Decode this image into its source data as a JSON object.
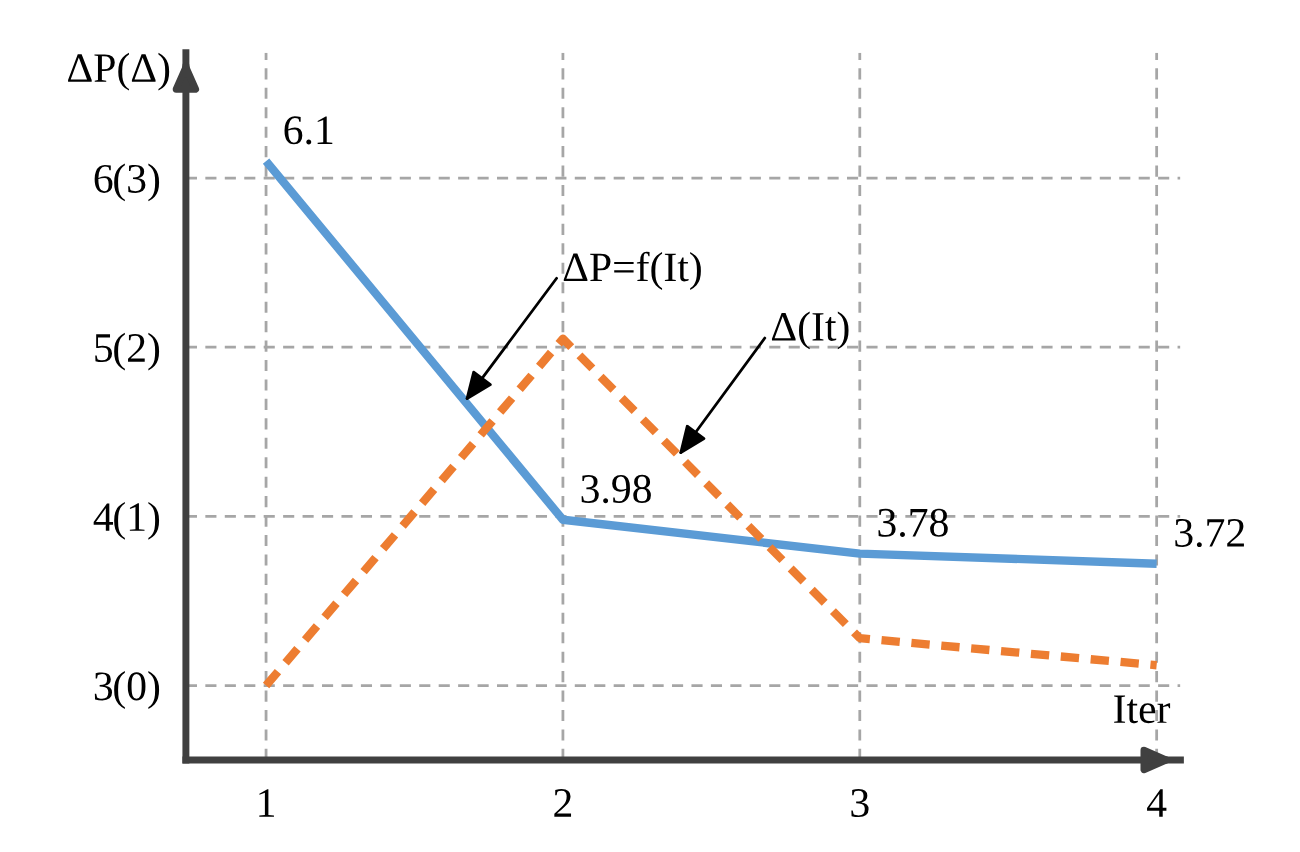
{
  "chart_data": {
    "type": "line",
    "xlabel": "Iter",
    "ylabel": "ΔP(Δ)",
    "x": [
      1,
      2,
      3,
      4
    ],
    "series": [
      {
        "color": "#5b9bd5",
        "values": [
          6.1,
          3.98,
          3.78,
          3.72
        ],
        "value_labels": [
          "6.1",
          "3.98",
          "3.78",
          "3.72"
        ],
        "line_style": "solid"
      },
      {
        "color": "#ed7d31",
        "values": [
          0.0,
          2.05,
          0.28,
          0.12
        ],
        "line_style": "dashed",
        "axis": "y2"
      }
    ],
    "xlim": [
      0.73,
      4.08
    ],
    "ylim": [
      2.56,
      6.74
    ],
    "xticks": [
      1,
      2,
      3,
      4
    ],
    "yticks": [
      3,
      4,
      5,
      6
    ],
    "y2lim": [
      -0.44,
      3.74
    ],
    "y2ticks": [
      {
        "value": 0,
        "label": "(0)"
      },
      {
        "value": 1,
        "label": "(1)"
      },
      {
        "value": 2,
        "label": "(2)"
      },
      {
        "value": 3,
        "label": "(3)"
      }
    ],
    "annotations": [
      {
        "text": "ΔP=f(It)",
        "x": 1.67,
        "y": 4.68
      },
      {
        "text": "Δ(It)",
        "x": 2.39,
        "y": 4.36
      }
    ],
    "grid": true,
    "legend": false,
    "marker": "none"
  }
}
